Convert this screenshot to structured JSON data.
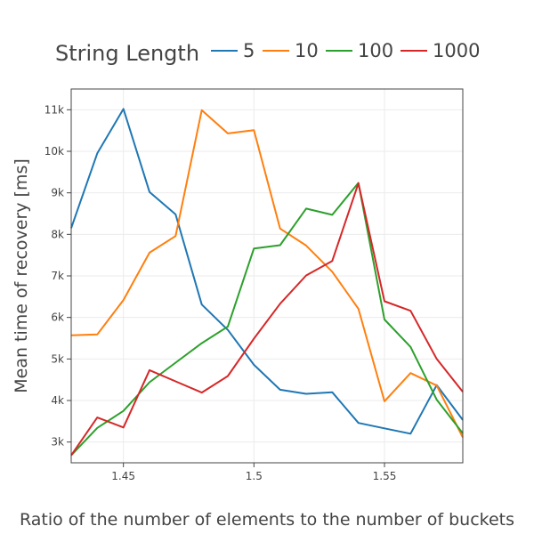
{
  "chart_data": {
    "type": "line",
    "legend": {
      "title": "String Length",
      "placement": "top"
    },
    "xlabel": "Ratio of the number of elements to the number of buckets",
    "ylabel": "Mean time of recovery [ms]",
    "xlim": [
      1.43,
      1.58
    ],
    "ylim": [
      2500,
      11500
    ],
    "grid": true,
    "x": [
      1.43,
      1.44,
      1.45,
      1.46,
      1.47,
      1.48,
      1.49,
      1.5,
      1.51,
      1.52,
      1.53,
      1.54,
      1.55,
      1.56,
      1.57,
      1.58
    ],
    "x_ticks": [
      {
        "value": 1.45,
        "label": "1.45"
      },
      {
        "value": 1.5,
        "label": "1.5"
      },
      {
        "value": 1.55,
        "label": "1.55"
      }
    ],
    "y_ticks": [
      {
        "value": 3000,
        "label": "3k"
      },
      {
        "value": 4000,
        "label": "4k"
      },
      {
        "value": 5000,
        "label": "5k"
      },
      {
        "value": 6000,
        "label": "6k"
      },
      {
        "value": 7000,
        "label": "7k"
      },
      {
        "value": 8000,
        "label": "8k"
      },
      {
        "value": 9000,
        "label": "9k"
      },
      {
        "value": 10000,
        "label": "10k"
      },
      {
        "value": 11000,
        "label": "11k"
      }
    ],
    "series": [
      {
        "name": "5",
        "color": "#1f77b4",
        "values": [
          8150,
          9950,
          11020,
          9020,
          8480,
          6310,
          5700,
          4860,
          4260,
          4160,
          4200,
          3460,
          3330,
          3200,
          4370,
          3530
        ]
      },
      {
        "name": "10",
        "color": "#ff7f0e",
        "values": [
          5570,
          5590,
          6420,
          7560,
          7960,
          10990,
          10430,
          10510,
          8140,
          7730,
          7100,
          6210,
          3980,
          4660,
          4360,
          3110
        ]
      },
      {
        "name": "100",
        "color": "#2ca02c",
        "values": [
          2680,
          3340,
          3750,
          4440,
          4910,
          5380,
          5780,
          7660,
          7740,
          8620,
          8470,
          9240,
          5950,
          5290,
          4020,
          3210
        ]
      },
      {
        "name": "1000",
        "color": "#d62728",
        "values": [
          2680,
          3590,
          3350,
          4730,
          4460,
          4190,
          4590,
          5490,
          6330,
          7010,
          7360,
          9230,
          6390,
          6160,
          5000,
          4210
        ]
      }
    ]
  }
}
